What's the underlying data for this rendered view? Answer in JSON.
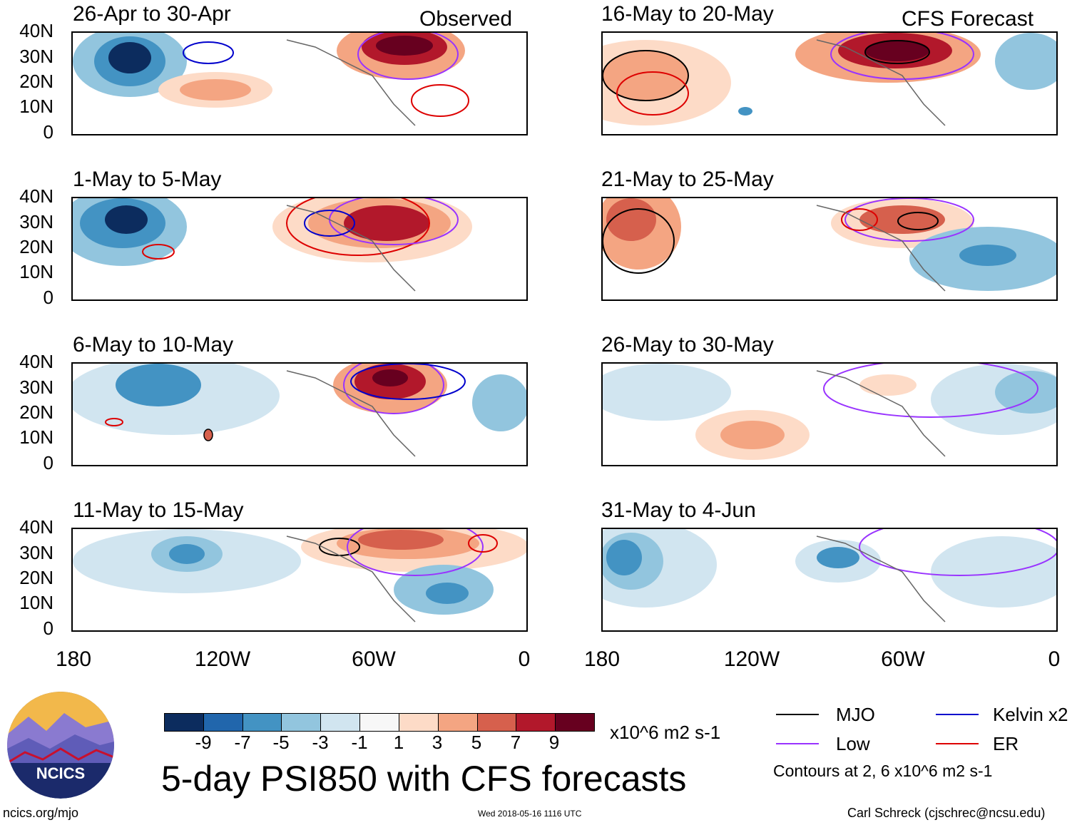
{
  "header": {
    "observed_label": "Observed",
    "forecast_label": "CFS Forecast"
  },
  "panels": [
    {
      "title": "26-Apr to 30-Apr"
    },
    {
      "title": "1-May to 5-May"
    },
    {
      "title": "6-May to 10-May"
    },
    {
      "title": "11-May to 15-May"
    },
    {
      "title": "16-May to 20-May"
    },
    {
      "title": "21-May to 25-May"
    },
    {
      "title": "26-May to 30-May"
    },
    {
      "title": "31-May to 4-Jun"
    }
  ],
  "axes": {
    "lat_labels": [
      "40N",
      "30N",
      "20N",
      "10N",
      "0"
    ],
    "lon_labels": [
      "180",
      "120W",
      "60W",
      "0"
    ]
  },
  "colorbar": {
    "ticks": [
      "-9",
      "-7",
      "-5",
      "-3",
      "-1",
      "1",
      "3",
      "5",
      "7",
      "9"
    ],
    "colors": [
      "#0c2c5e",
      "#2166ac",
      "#4393c3",
      "#92c5de",
      "#d1e5f0",
      "#f7f7f7",
      "#fddbc7",
      "#f4a582",
      "#d6604d",
      "#b2182b",
      "#67001f"
    ],
    "units": "x10^6 m2 s-1"
  },
  "title": "5-day PSI850 with CFS forecasts",
  "legend": {
    "items": [
      {
        "label": "MJO",
        "color": "#000000"
      },
      {
        "label": "Kelvin x2",
        "color": "#0000cc"
      },
      {
        "label": "Low",
        "color": "#9933ff"
      },
      {
        "label": "ER",
        "color": "#dd0000"
      }
    ],
    "contours_note": "Contours at 2, 6 x10^6 m2 s-1"
  },
  "logo": {
    "text": "NCICS"
  },
  "footer": {
    "url": "ncics.org/mjo",
    "timestamp": "Wed 2018-05-16 1116 UTC",
    "credit": "Carl Schreck (cjschrec@ncsu.edu)"
  }
}
